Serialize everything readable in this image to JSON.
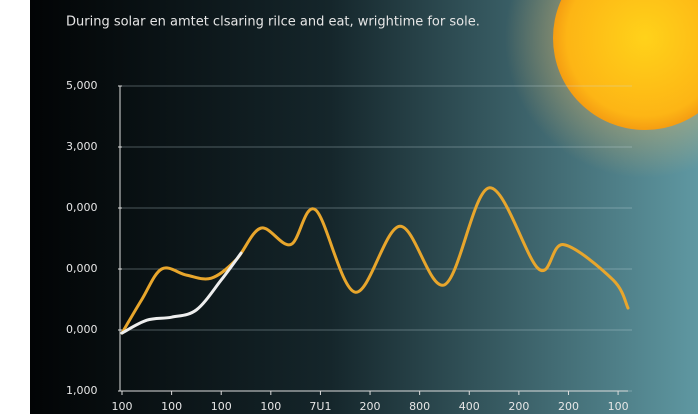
{
  "chart_data": {
    "type": "line",
    "title": "During solar en amtet clsaring rilce and eat, wrightime for sole.",
    "xlim": [
      0,
      10.2
    ],
    "xticks": [
      {
        "value": 0,
        "label": "100"
      },
      {
        "value": 1,
        "label": "100"
      },
      {
        "value": 2,
        "label": "100"
      },
      {
        "value": 3,
        "label": "100"
      },
      {
        "value": 4,
        "label": "7U1"
      },
      {
        "value": 5,
        "label": "200"
      },
      {
        "value": 6,
        "label": "800"
      },
      {
        "value": 7,
        "label": "400"
      },
      {
        "value": 8,
        "label": "200"
      },
      {
        "value": 9,
        "label": "200"
      },
      {
        "value": 10,
        "label": "100"
      }
    ],
    "ylim": [
      0,
      5
    ],
    "yticks": [
      {
        "value": 0,
        "label": "1,000"
      },
      {
        "value": 1,
        "label": "0,000"
      },
      {
        "value": 2,
        "label": "0,000"
      },
      {
        "value": 3,
        "label": "0,000"
      },
      {
        "value": 4,
        "label": "3,000"
      },
      {
        "value": 5,
        "label": "5,000"
      }
    ],
    "grid": true,
    "series": [
      {
        "color": "#e8a62c",
        "x": [
          0,
          0.4,
          0.8,
          1.3,
          1.8,
          2.3,
          2.8,
          3.4,
          3.9,
          4.7,
          5.6,
          6.5,
          7.4,
          8.4,
          8.9,
          9.9,
          10.2
        ],
        "values": [
          0.95,
          1.5,
          2.0,
          1.9,
          1.85,
          2.15,
          2.67,
          2.4,
          2.97,
          1.62,
          2.7,
          1.74,
          3.33,
          2.0,
          2.4,
          1.82,
          1.36
        ]
      },
      {
        "color": "#eeeeee",
        "x": [
          0,
          0.5,
          1.0,
          1.5,
          2.0,
          2.4
        ],
        "values": [
          0.95,
          1.16,
          1.21,
          1.33,
          1.82,
          2.26
        ]
      }
    ]
  }
}
